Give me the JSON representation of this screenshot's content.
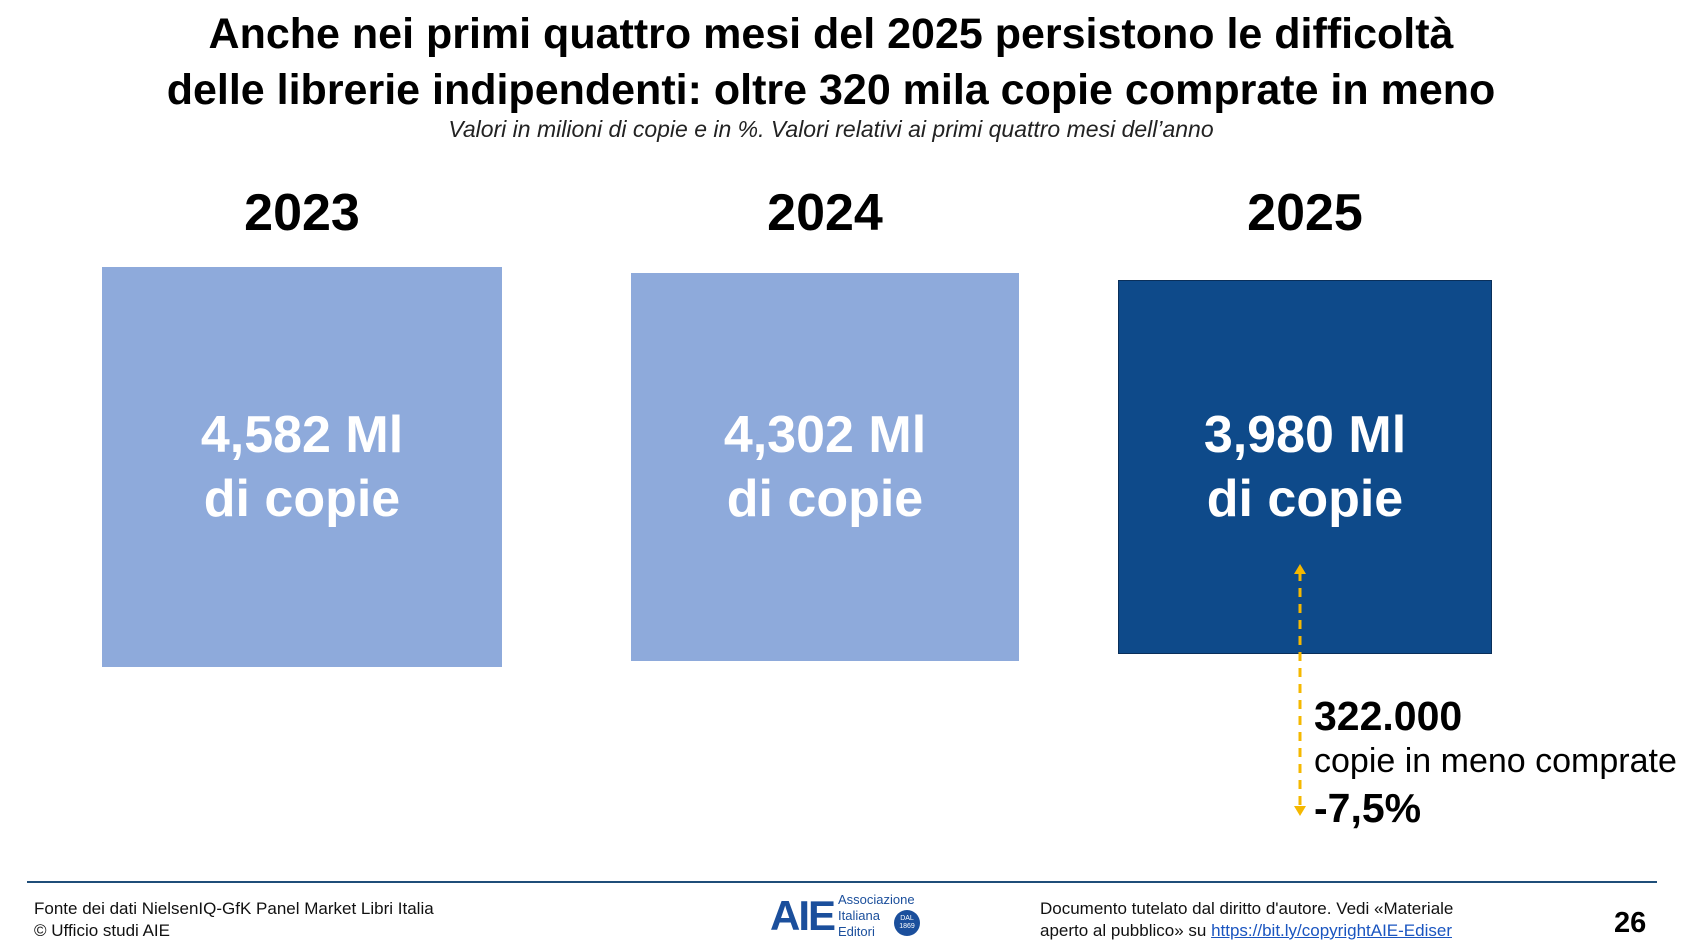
{
  "title_line1": "Anche nei primi quattro mesi del 2025 persistono le difficoltà",
  "title_line2": "delle librerie indipendenti: oltre 320 mila copie comprate in meno",
  "subtitle": "Valori in milioni di copie e in %. Valori relativi ai primi quattro mesi dell’anno",
  "chart_data": {
    "type": "bar",
    "categories": [
      "2023",
      "2024",
      "2025"
    ],
    "values": [
      4.582,
      4.302,
      3.98
    ],
    "value_labels": [
      [
        "4,582 Ml",
        "di copie"
      ],
      [
        "4,302 Ml",
        "di copie"
      ],
      [
        "3,980 Ml",
        "di copie"
      ]
    ],
    "colors": [
      "#8eaadb",
      "#8eaadb",
      "#0e4a8a"
    ],
    "annotation": {
      "value": "322.000",
      "text": "copie in meno comprate",
      "percent": "-7,5%",
      "color": "#f5b800"
    }
  },
  "footer": {
    "source_line1": "Fonte dei dati NielsenIQ-GfK Panel Market Libri Italia",
    "source_line2": "© Ufficio studi AIE",
    "logo_mark": "AIE",
    "logo_line1": "Associazione",
    "logo_line2": "Italiana",
    "logo_line3": "Editori",
    "logo_seal": "DAL 1869",
    "copyright_line1": "Documento tutelato dal diritto d'autore. Vedi «Materiale",
    "copyright_line2_prefix": "aperto al pubblico» su ",
    "copyright_link": "https://bit.ly/copyrightAIE-Ediser",
    "page_number": "26"
  }
}
